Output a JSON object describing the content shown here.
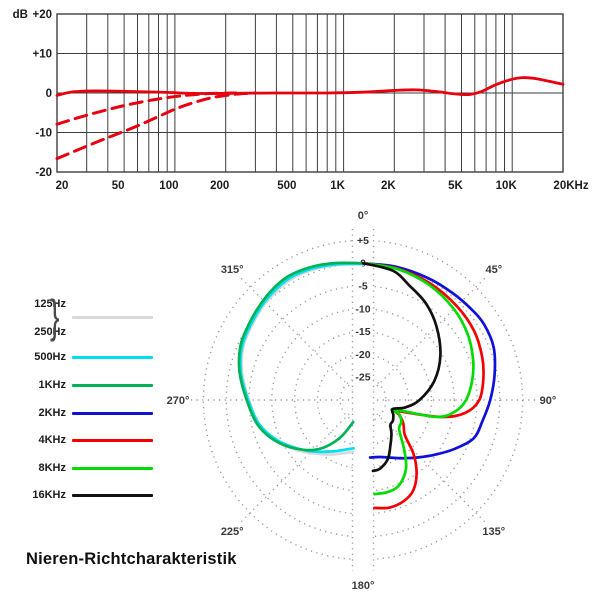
{
  "page": {
    "background": "#ffffff"
  },
  "chart_data": [
    {
      "type": "line",
      "id": "frequency-response",
      "ylabel": "dB",
      "x_scale": "log",
      "xlim": [
        20,
        20000
      ],
      "ylim": [
        -20,
        20
      ],
      "y_tick_values": [
        20,
        10,
        0,
        -10,
        -20
      ],
      "y_tick_labels": [
        "+20",
        "+10",
        "0",
        "-10",
        "-20"
      ],
      "x_tick_values": [
        20,
        50,
        100,
        200,
        500,
        1000,
        2000,
        5000,
        10000,
        20000
      ],
      "x_tick_labels": [
        "20",
        "50",
        "100",
        "200",
        "500",
        "1K",
        "2K",
        "5K",
        "10K",
        "20KHz"
      ],
      "x_minor_gridlines": [
        30,
        40,
        60,
        70,
        80,
        90,
        300,
        400,
        600,
        700,
        800,
        900,
        3000,
        4000,
        6000,
        7000,
        8000,
        9000
      ],
      "grid_color": "#3e3e3e",
      "label_color": "#1d1d1d",
      "series": [
        {
          "name": "frequency-response",
          "style": "solid",
          "color": "#e8000f",
          "points": [
            [
              20,
              -0.6
            ],
            [
              24,
              0.2
            ],
            [
              30,
              0.5
            ],
            [
              40,
              0.5
            ],
            [
              60,
              0.35
            ],
            [
              90,
              0.15
            ],
            [
              130,
              -0.1
            ],
            [
              200,
              -0.1
            ],
            [
              400,
              0
            ],
            [
              800,
              0
            ],
            [
              1300,
              0.2
            ],
            [
              2000,
              0.65
            ],
            [
              2700,
              0.8
            ],
            [
              3500,
              0.4
            ],
            [
              4500,
              -0.2
            ],
            [
              5500,
              -0.4
            ],
            [
              6500,
              0.3
            ],
            [
              8000,
              2.1
            ],
            [
              10000,
              3.5
            ],
            [
              11500,
              3.9
            ],
            [
              13500,
              3.7
            ],
            [
              16000,
              3.1
            ],
            [
              20000,
              2.2
            ]
          ]
        },
        {
          "name": "low-frequency-rolloff-a",
          "style": "dashed",
          "color": "#e8000f",
          "points": [
            [
              20,
              -7.9
            ],
            [
              28,
              -6
            ],
            [
              40,
              -4.2
            ],
            [
              55,
              -2.8
            ],
            [
              75,
              -1.7
            ],
            [
              100,
              -0.9
            ],
            [
              130,
              -0.4
            ],
            [
              170,
              -0.1
            ],
            [
              230,
              0
            ]
          ]
        },
        {
          "name": "low-frequency-rolloff-b",
          "style": "dashed",
          "color": "#e8000f",
          "points": [
            [
              20,
              -16.6
            ],
            [
              28,
              -14
            ],
            [
              40,
              -11.3
            ],
            [
              55,
              -9
            ],
            [
              75,
              -6.5
            ],
            [
              100,
              -4.1
            ],
            [
              130,
              -2.4
            ],
            [
              170,
              -1.1
            ],
            [
              230,
              -0.3
            ],
            [
              300,
              0
            ]
          ]
        }
      ]
    },
    {
      "type": "polar",
      "id": "polar-pattern",
      "title": "Nieren-Richtcharakteristik",
      "angle_ticks_deg": [
        0,
        45,
        90,
        135,
        180,
        225,
        270,
        315
      ],
      "angle_labels": [
        "0°",
        "45°",
        "90°",
        "135°",
        "180°",
        "225°",
        "270°",
        "315°"
      ],
      "radial_tick_db": [
        5,
        0,
        -5,
        -10,
        -15,
        -20,
        -25
      ],
      "radial_labels": [
        "+5",
        "0",
        "-5",
        "-10",
        "-15",
        "-20",
        "-25"
      ],
      "r_center_db": -30,
      "grid_dot_color": "#9a9a9a",
      "label_color": "#32323c",
      "series": [
        {
          "name": "125Hz-250Hz",
          "color": "#d8d8d8",
          "points": [
            [
              191,
              -18.4
            ],
            [
              200,
              -17.6
            ],
            [
              210,
              -16.2
            ],
            [
              222,
              -14.2
            ],
            [
              232,
              -12
            ],
            [
              245,
              -9
            ],
            [
              257,
              -6.6
            ],
            [
              270,
              -5
            ],
            [
              283,
              -2.8
            ],
            [
              295,
              -1.2
            ],
            [
              310,
              -0.2
            ],
            [
              320,
              0.4
            ],
            [
              330,
              0.8
            ],
            [
              340,
              0.6
            ],
            [
              350,
              0.1
            ],
            [
              360,
              -0.3
            ]
          ]
        },
        {
          "name": "500Hz",
          "color": "#00dff0",
          "points": [
            [
              191,
              -19.2
            ],
            [
              200,
              -18.4
            ],
            [
              210,
              -17
            ],
            [
              224,
              -14.3
            ],
            [
              234,
              -12
            ],
            [
              245,
              -9.2
            ],
            [
              257,
              -6.6
            ],
            [
              270,
              -4.8
            ],
            [
              283,
              -2.5
            ],
            [
              295,
              -0.9
            ],
            [
              310,
              0.1
            ],
            [
              320,
              0.8
            ],
            [
              329,
              1.2
            ],
            [
              339,
              0.9
            ],
            [
              349,
              0.3
            ],
            [
              360,
              -0.1
            ]
          ]
        },
        {
          "name": "1KHz",
          "color": "#00b257",
          "points": [
            [
              204,
              -24.7
            ],
            [
              211,
              -20.5
            ],
            [
              220,
              -16.3
            ],
            [
              230,
              -13
            ],
            [
              243,
              -9.3
            ],
            [
              256,
              -6.4
            ],
            [
              270,
              -4.5
            ],
            [
              283,
              -2.2
            ],
            [
              294,
              -0.6
            ],
            [
              303,
              0
            ],
            [
              311,
              0.6
            ],
            [
              320,
              1.3
            ],
            [
              329,
              1.7
            ],
            [
              339,
              1.3
            ],
            [
              349,
              0.6
            ],
            [
              360,
              0
            ]
          ]
        },
        {
          "name": "2KHz",
          "color": "#1010d8",
          "points": [
            [
              0,
              0
            ],
            [
              14,
              0.1
            ],
            [
              28,
              0.3
            ],
            [
              40,
              0.6
            ],
            [
              50,
              1
            ],
            [
              58,
              1.3
            ],
            [
              68,
              0.9
            ],
            [
              79,
              -0.6
            ],
            [
              90,
              -2.1
            ],
            [
              100,
              -3.4
            ],
            [
              109,
              -4.3
            ],
            [
              118,
              -7.2
            ],
            [
              127,
              -10.1
            ],
            [
              136,
              -12.5
            ],
            [
              146,
              -14.6
            ],
            [
              156,
              -16.2
            ],
            [
              164,
              -17
            ],
            [
              173,
              -17.3
            ]
          ]
        },
        {
          "name": "4KHz",
          "color": "#f50000",
          "points": [
            [
              0,
              0
            ],
            [
              15,
              -0.2
            ],
            [
              30,
              -0.5
            ],
            [
              45,
              -0.9
            ],
            [
              58,
              -1.3
            ],
            [
              70,
              -2.2
            ],
            [
              80,
              -3.2
            ],
            [
              90,
              -4.5
            ],
            [
              97,
              -7.3
            ],
            [
              102,
              -12
            ],
            [
              106,
              -20
            ],
            [
              108,
              -23
            ],
            [
              112,
              -21.5
            ],
            [
              120,
              -19.8
            ],
            [
              130,
              -18
            ],
            [
              137,
              -13.7
            ],
            [
              144,
              -10
            ],
            [
              151,
              -7.3
            ],
            [
              158,
              -6.1
            ],
            [
              166,
              -5.7
            ],
            [
              174,
              -6.2
            ]
          ]
        },
        {
          "name": "8KHz",
          "color": "#00dc00",
          "points": [
            [
              0,
              0
            ],
            [
              15,
              -0.3
            ],
            [
              30,
              -0.9
            ],
            [
              45,
              -1.8
            ],
            [
              58,
              -2.9
            ],
            [
              70,
              -4.3
            ],
            [
              80,
              -5.7
            ],
            [
              90,
              -7.4
            ],
            [
              97,
              -9.6
            ],
            [
              103,
              -13.5
            ],
            [
              107,
              -23
            ],
            [
              111,
              -21.5
            ],
            [
              120,
              -20.3
            ],
            [
              129,
              -19.8
            ],
            [
              140,
              -16
            ],
            [
              148,
              -12.2
            ],
            [
              157,
              -9.7
            ],
            [
              165,
              -9.1
            ],
            [
              173,
              -9.2
            ]
          ]
        },
        {
          "name": "16KHz",
          "color": "#111111",
          "points": [
            [
              0,
              0
            ],
            [
              13,
              -0.9
            ],
            [
              22,
              -2.9
            ],
            [
              33,
              -4.7
            ],
            [
              45,
              -7.2
            ],
            [
              60,
              -10.4
            ],
            [
              75,
              -13.8
            ],
            [
              90,
              -17.6
            ],
            [
              100,
              -20.6
            ],
            [
              107,
              -23.2
            ],
            [
              116,
              -22.6
            ],
            [
              125,
              -22
            ],
            [
              132,
              -21.9
            ],
            [
              140,
              -20.3
            ],
            [
              148,
              -18.6
            ],
            [
              157,
              -16
            ],
            [
              166,
              -14.5
            ],
            [
              172,
              -14.3
            ]
          ]
        }
      ]
    }
  ],
  "legend": {
    "group": {
      "labels": [
        "125Hz",
        "250Hz"
      ],
      "brace_glyph": "}",
      "color": "#d8d8d8"
    },
    "entries": [
      {
        "label": "500Hz",
        "color": "#00dff0"
      },
      {
        "label": "1KHz",
        "color": "#00b257"
      },
      {
        "label": "2KHz",
        "color": "#1010d8"
      },
      {
        "label": "4KHz",
        "color": "#f50000"
      },
      {
        "label": "8KHz",
        "color": "#00dc00"
      },
      {
        "label": "16KHz",
        "color": "#111111"
      }
    ]
  }
}
